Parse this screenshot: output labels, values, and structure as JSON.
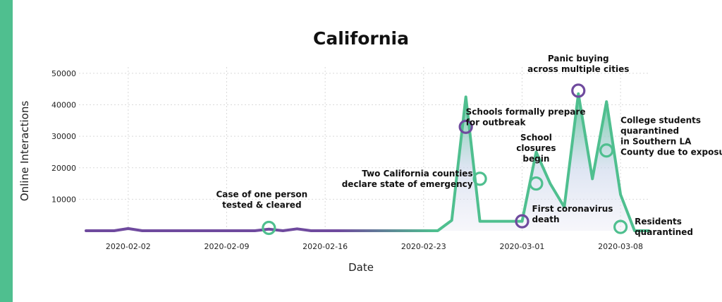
{
  "chart_data": {
    "type": "line",
    "title": "California",
    "xlabel": "Date",
    "ylabel": "Online Interactions",
    "x_tick_labels": [
      "2020-02-02",
      "2020-02-09",
      "2020-02-16",
      "2020-02-23",
      "2020-03-01",
      "2020-03-08"
    ],
    "y_ticks": [
      10000,
      20000,
      30000,
      40000,
      50000
    ],
    "ylim": [
      0,
      52000
    ],
    "grid": true,
    "series": [
      {
        "x": [
          "2020-01-30",
          "2020-01-31",
          "2020-02-01",
          "2020-02-02",
          "2020-02-03",
          "2020-02-04",
          "2020-02-05",
          "2020-02-06",
          "2020-02-07",
          "2020-02-08",
          "2020-02-09",
          "2020-02-10",
          "2020-02-11",
          "2020-02-12",
          "2020-02-13",
          "2020-02-14",
          "2020-02-15",
          "2020-02-16",
          "2020-02-17",
          "2020-02-18",
          "2020-02-19",
          "2020-02-20",
          "2020-02-21",
          "2020-02-22",
          "2020-02-23",
          "2020-02-24",
          "2020-02-25",
          "2020-02-26",
          "2020-02-27",
          "2020-02-28",
          "2020-02-29",
          "2020-03-01",
          "2020-03-02",
          "2020-03-03",
          "2020-03-04",
          "2020-03-05",
          "2020-03-06",
          "2020-03-07",
          "2020-03-08",
          "2020-03-09",
          "2020-03-10"
        ],
        "y": [
          0,
          0,
          0,
          700,
          0,
          0,
          0,
          0,
          0,
          0,
          0,
          0,
          0,
          500,
          0,
          600,
          0,
          0,
          0,
          0,
          0,
          0,
          0,
          0,
          0,
          0,
          3300,
          42500,
          3000,
          3000,
          3000,
          3000,
          25000,
          15000,
          7500,
          43500,
          16500,
          41000,
          11500,
          0,
          0
        ]
      }
    ],
    "annotations": [
      {
        "x": "2020-02-12",
        "y": 900,
        "lines": [
          "Case of one person",
          "tested & cleared"
        ]
      },
      {
        "x": "2020-02-26",
        "y": 33000,
        "lines": [
          "Schools formally prepare",
          "for outbreak"
        ]
      },
      {
        "x": "2020-02-27",
        "y": 16500,
        "lines": [
          "Two California counties",
          "declare state of emergency"
        ]
      },
      {
        "x": "2020-03-01",
        "y": 3000,
        "lines": [
          "First coronavirus",
          "death"
        ]
      },
      {
        "x": "2020-03-02",
        "y": 15000,
        "lines": [
          "School",
          "closures",
          "begin"
        ]
      },
      {
        "x": "2020-03-05",
        "y": 44500,
        "lines": [
          "Panic buying",
          "across multiple cities"
        ]
      },
      {
        "x": "2020-03-07",
        "y": 25500,
        "lines": [
          "College students",
          "quarantined",
          "in Southern LA",
          "County due to exposure"
        ]
      },
      {
        "x": "2020-03-08",
        "y": 1200,
        "lines": [
          "Residents",
          "quarantined"
        ]
      }
    ],
    "colors": {
      "start": "#6f4a9e",
      "end": "#4fbf8f",
      "fill": "#e6e8f2",
      "side_bar": "#4fbf8f"
    }
  }
}
